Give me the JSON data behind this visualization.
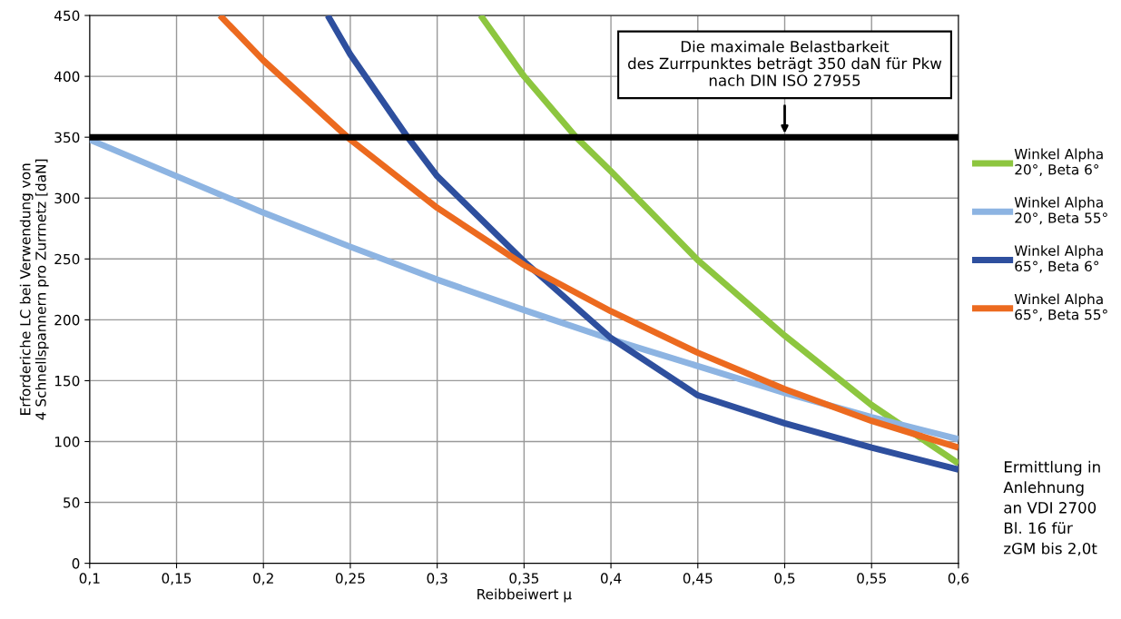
{
  "chart_data": {
    "type": "line",
    "xlabel": "Reibbeiwert μ",
    "ylabel": "Erforderiche LC bei Verwendung von\n4 Schnellspannern pro Zurrnetz [daN]",
    "xlim": [
      0.1,
      0.6
    ],
    "ylim": [
      0,
      450
    ],
    "xticks": [
      {
        "value": 0.1,
        "label": "0,1"
      },
      {
        "value": 0.15,
        "label": "0,15"
      },
      {
        "value": 0.2,
        "label": "0,2"
      },
      {
        "value": 0.25,
        "label": "0,25"
      },
      {
        "value": 0.3,
        "label": "0,3"
      },
      {
        "value": 0.35,
        "label": "0,35"
      },
      {
        "value": 0.4,
        "label": "0,4"
      },
      {
        "value": 0.45,
        "label": "0,45"
      },
      {
        "value": 0.5,
        "label": "0,5"
      },
      {
        "value": 0.55,
        "label": "0,55"
      },
      {
        "value": 0.6,
        "label": "0,6"
      }
    ],
    "yticks": [
      0,
      50,
      100,
      150,
      200,
      250,
      300,
      350,
      400,
      450
    ],
    "grid": true,
    "legend": "right",
    "marker": "none",
    "line_style": "solid",
    "series": [
      {
        "name": "Winkel Alpha\n20°, Beta 6°",
        "color": "#8dc63f",
        "x": [
          0.325,
          0.35,
          0.38,
          0.4,
          0.45,
          0.5,
          0.55,
          0.6
        ],
        "values": [
          450,
          400,
          350,
          322,
          249,
          187,
          130,
          82
        ]
      },
      {
        "name": "Winkel Alpha\n20°, Beta 55°",
        "color": "#8db4e2",
        "x": [
          0.1,
          0.15,
          0.2,
          0.25,
          0.3,
          0.35,
          0.4,
          0.45,
          0.5,
          0.55,
          0.6
        ],
        "values": [
          348,
          318,
          288,
          260,
          233,
          208,
          184,
          162,
          140,
          120,
          102
        ]
      },
      {
        "name": "Winkel Alpha\n65°, Beta 6°",
        "color": "#2e4f9e",
        "x": [
          0.237,
          0.25,
          0.283,
          0.3,
          0.35,
          0.4,
          0.45,
          0.5,
          0.55,
          0.6
        ],
        "values": [
          450,
          418,
          350,
          318,
          248,
          185,
          138,
          115,
          95,
          77
        ]
      },
      {
        "name": "Winkel Alpha\n65°, Beta 55°",
        "color": "#ec6a1f",
        "x": [
          0.175,
          0.2,
          0.25,
          0.3,
          0.35,
          0.4,
          0.45,
          0.5,
          0.55,
          0.6
        ],
        "values": [
          450,
          413,
          348,
          292,
          245,
          207,
          173,
          143,
          117,
          95
        ]
      }
    ],
    "ref_lines": [
      {
        "axis": "y",
        "value": 350,
        "color": "#000000"
      }
    ],
    "annotations": [
      "Die maximale Belastbarkeit\ndes Zurrpunktes beträgt 350 daN für Pkw\nnach DIN ISO 27955",
      "Ermittlung in\nAnlehnung\nan VDI 2700\nBl. 16 für\nzGM bis 2,0t"
    ]
  }
}
